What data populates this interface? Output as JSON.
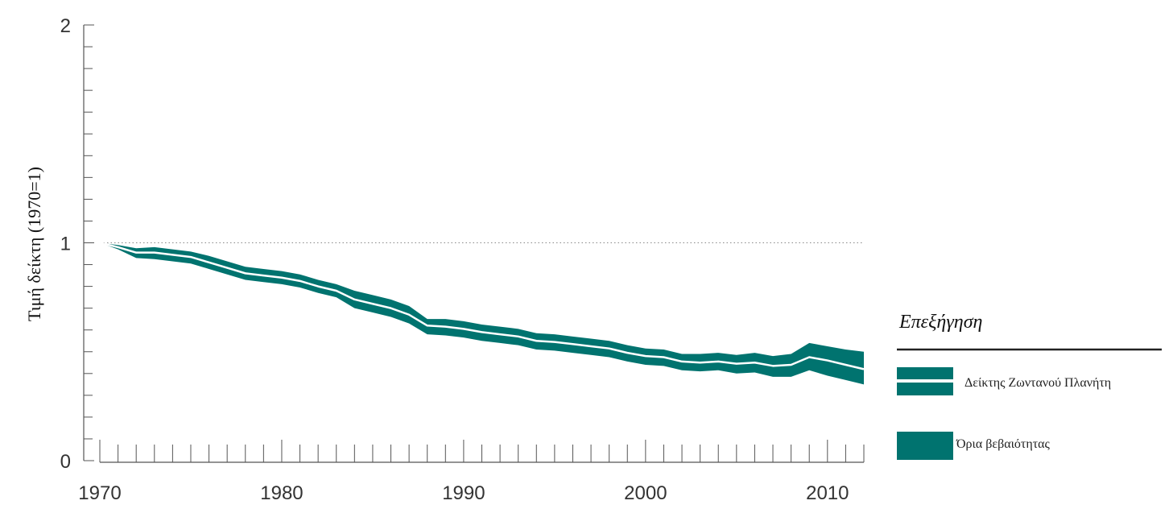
{
  "chart_data": {
    "type": "area",
    "ylabel": "Τιμή δείκτη (1970=1)",
    "xlabel": "",
    "xlim": [
      1970,
      2012
    ],
    "ylim": [
      0,
      2
    ],
    "x_ticks": [
      1970,
      1980,
      1990,
      2000,
      2010
    ],
    "y_ticks": [
      0,
      1,
      2
    ],
    "reference_line": 1,
    "colors": {
      "band": "#00736F",
      "line": "#ffffff",
      "axis": "#555555"
    },
    "legend": {
      "title": "Επεξήγηση",
      "placement": "right",
      "items": [
        {
          "label": "Δείκτης Ζωντανού Πλανήτη",
          "kind": "index-line"
        },
        {
          "label": "Όρια βεβαιότητας",
          "kind": "band"
        }
      ]
    },
    "series": [
      {
        "name": "Δείκτης Ζωντανού Πλανήτη",
        "x": [
          1970,
          1971,
          1972,
          1973,
          1974,
          1975,
          1976,
          1977,
          1978,
          1979,
          1980,
          1981,
          1982,
          1983,
          1984,
          1985,
          1986,
          1987,
          1988,
          1989,
          1990,
          1991,
          1992,
          1993,
          1994,
          1995,
          1996,
          1997,
          1998,
          1999,
          2000,
          2001,
          2002,
          2003,
          2004,
          2005,
          2006,
          2007,
          2008,
          2009,
          2010,
          2011,
          2012
        ],
        "values": [
          1.0,
          0.98,
          0.955,
          0.955,
          0.945,
          0.935,
          0.91,
          0.885,
          0.86,
          0.85,
          0.84,
          0.825,
          0.8,
          0.78,
          0.74,
          0.72,
          0.7,
          0.67,
          0.62,
          0.615,
          0.605,
          0.59,
          0.58,
          0.57,
          0.55,
          0.545,
          0.535,
          0.525,
          0.515,
          0.495,
          0.48,
          0.475,
          0.455,
          0.45,
          0.455,
          0.445,
          0.45,
          0.435,
          0.44,
          0.475,
          0.46,
          0.44,
          0.42
        ],
        "lower": [
          1.0,
          0.97,
          0.93,
          0.925,
          0.915,
          0.905,
          0.88,
          0.855,
          0.83,
          0.82,
          0.81,
          0.795,
          0.77,
          0.75,
          0.7,
          0.68,
          0.66,
          0.63,
          0.58,
          0.575,
          0.565,
          0.55,
          0.54,
          0.53,
          0.51,
          0.505,
          0.495,
          0.485,
          0.475,
          0.455,
          0.44,
          0.435,
          0.415,
          0.41,
          0.415,
          0.4,
          0.405,
          0.385,
          0.385,
          0.415,
          0.39,
          0.37,
          0.35
        ],
        "upper": [
          1.0,
          0.99,
          0.975,
          0.98,
          0.97,
          0.96,
          0.94,
          0.915,
          0.89,
          0.88,
          0.87,
          0.855,
          0.83,
          0.81,
          0.78,
          0.76,
          0.74,
          0.71,
          0.65,
          0.65,
          0.64,
          0.625,
          0.615,
          0.605,
          0.585,
          0.58,
          0.57,
          0.56,
          0.55,
          0.53,
          0.515,
          0.51,
          0.49,
          0.49,
          0.495,
          0.485,
          0.495,
          0.48,
          0.49,
          0.54,
          0.525,
          0.51,
          0.5
        ]
      }
    ]
  }
}
